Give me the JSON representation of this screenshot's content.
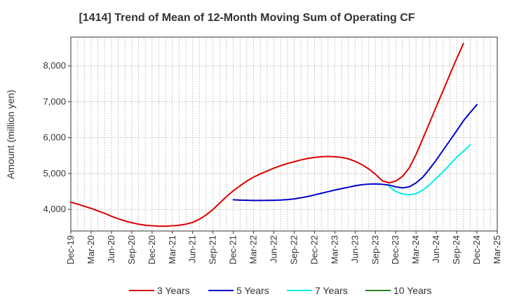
{
  "chart_data": {
    "type": "line",
    "title": "[1414]  Trend of Mean of 12-Month Moving Sum of Operating CF",
    "xlabel": "",
    "ylabel": "Amount (million yen)",
    "ylim": [
      3400,
      8800
    ],
    "yticks": [
      4000,
      5000,
      6000,
      7000,
      8000
    ],
    "ytick_labels": [
      "4,000",
      "5,000",
      "6,000",
      "7,000",
      "8,000"
    ],
    "xticks": [
      "Dec-19",
      "Mar-20",
      "Jun-20",
      "Sep-20",
      "Dec-20",
      "Mar-21",
      "Jun-21",
      "Sep-21",
      "Dec-21",
      "Mar-22",
      "Jun-22",
      "Sep-22",
      "Dec-22",
      "Mar-23",
      "Jun-23",
      "Sep-23",
      "Dec-23",
      "Mar-24",
      "Jun-24",
      "Sep-24",
      "Dec-24",
      "Mar-25"
    ],
    "grid": true,
    "legend_position": "bottom",
    "series": [
      {
        "name": "3 Years",
        "color": "#dd0000",
        "start_index": 0,
        "values": [
          4200,
          4150,
          4090,
          4030,
          3960,
          3890,
          3810,
          3740,
          3680,
          3630,
          3590,
          3560,
          3545,
          3535,
          3535,
          3545,
          3560,
          3590,
          3640,
          3730,
          3850,
          4000,
          4180,
          4360,
          4520,
          4660,
          4790,
          4900,
          4990,
          5070,
          5150,
          5220,
          5280,
          5330,
          5380,
          5420,
          5450,
          5470,
          5475,
          5470,
          5450,
          5410,
          5340,
          5250,
          5130,
          4980,
          4800,
          4740,
          4790,
          4920,
          5160,
          5530,
          5970,
          6420,
          6870,
          7310,
          7760,
          8200,
          8620
        ]
      },
      {
        "name": "5 Years",
        "color": "#0000cc",
        "start_index": 24,
        "values": [
          4270,
          4260,
          4255,
          4250,
          4250,
          4252,
          4255,
          4262,
          4275,
          4295,
          4325,
          4360,
          4405,
          4450,
          4495,
          4540,
          4580,
          4620,
          4660,
          4690,
          4705,
          4710,
          4700,
          4680,
          4630,
          4600,
          4630,
          4740,
          4900,
          5130,
          5380,
          5650,
          5920,
          6190,
          6470,
          6700,
          6920
        ]
      },
      {
        "name": "7 Years",
        "color": "#00eeee",
        "start_index": 47,
        "values": [
          4640,
          4500,
          4430,
          4410,
          4440,
          4540,
          4690,
          4870,
          5050,
          5250,
          5460,
          5620,
          5800
        ]
      },
      {
        "name": "10 Years",
        "color": "#228822",
        "start_index": 0,
        "values": []
      }
    ]
  }
}
